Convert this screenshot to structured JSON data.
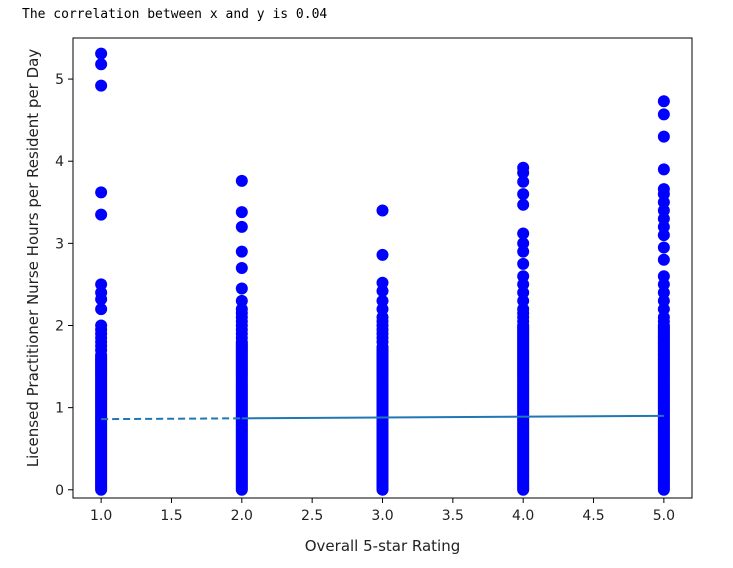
{
  "output": {
    "text": "The correlation between x and y is 0.04"
  },
  "chart_data": {
    "type": "scatter",
    "title": "",
    "xlabel": "Overall 5-star Rating",
    "ylabel": "Licensed Practitioner Nurse Hours per Resident per Day",
    "xlim": [
      0.8,
      5.2
    ],
    "ylim": [
      -0.1,
      5.5
    ],
    "x_ticks": [
      "1.0",
      "1.5",
      "2.0",
      "2.5",
      "3.0",
      "3.5",
      "4.0",
      "4.5",
      "5.0"
    ],
    "y_ticks": [
      "0",
      "1",
      "2",
      "3",
      "4",
      "5"
    ],
    "grid": false,
    "point_color": "#0000ff",
    "line_color": "#1f77b4",
    "series": [
      {
        "x": 1,
        "dense_range": [
          0.0,
          1.65
        ],
        "outliers": [
          1.7,
          1.75,
          1.8,
          1.85,
          1.9,
          1.95,
          2.0,
          2.2,
          2.32,
          2.4,
          2.5,
          3.35,
          3.62,
          4.92,
          5.18,
          5.31
        ]
      },
      {
        "x": 2,
        "dense_range": [
          0.0,
          1.8
        ],
        "outliers": [
          1.85,
          1.9,
          1.95,
          2.0,
          2.05,
          2.1,
          2.15,
          2.2,
          2.3,
          2.45,
          2.7,
          2.9,
          3.2,
          3.38,
          3.76
        ]
      },
      {
        "x": 3,
        "dense_range": [
          0.0,
          1.75
        ],
        "outliers": [
          1.8,
          1.85,
          1.9,
          1.95,
          2.0,
          2.05,
          2.1,
          2.2,
          2.3,
          2.42,
          2.52,
          2.86,
          3.4
        ]
      },
      {
        "x": 4,
        "dense_range": [
          0.0,
          2.0
        ],
        "outliers": [
          2.05,
          2.1,
          2.15,
          2.2,
          2.3,
          2.4,
          2.5,
          2.6,
          2.75,
          2.9,
          3.0,
          3.12,
          3.47,
          3.6,
          3.75,
          3.86,
          3.92
        ]
      },
      {
        "x": 5,
        "dense_range": [
          0.0,
          2.0
        ],
        "outliers": [
          2.05,
          2.1,
          2.2,
          2.3,
          2.4,
          2.5,
          2.6,
          2.8,
          2.95,
          3.1,
          3.2,
          3.3,
          3.4,
          3.5,
          3.6,
          3.66,
          3.9,
          4.3,
          4.57,
          4.73
        ]
      }
    ],
    "trend_line": {
      "x": [
        1,
        5
      ],
      "y": [
        0.86,
        0.9
      ],
      "dashed_until_x": 2
    }
  }
}
